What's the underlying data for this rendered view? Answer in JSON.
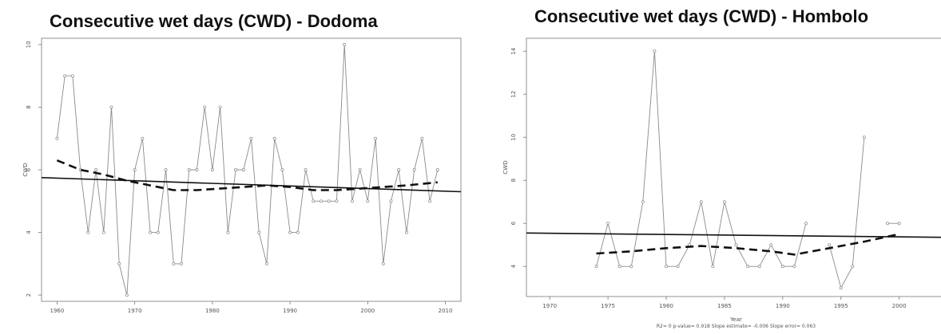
{
  "chart_data": [
    {
      "type": "line",
      "title": "Consecutive wet days (CWD) - Dodoma",
      "xlabel": "",
      "ylabel": "CWD",
      "xlim": [
        1958,
        2012
      ],
      "ylim": [
        1.8,
        10.2
      ],
      "xticks": [
        "1960",
        "1970",
        "1980",
        "1990",
        "2000",
        "2010"
      ],
      "yticks": [
        "2",
        "4",
        "6",
        "8",
        "10"
      ],
      "x": [
        1960,
        1961,
        1962,
        1963,
        1964,
        1965,
        1966,
        1967,
        1968,
        1969,
        1970,
        1971,
        1972,
        1973,
        1974,
        1975,
        1976,
        1977,
        1978,
        1979,
        1980,
        1981,
        1982,
        1983,
        1984,
        1985,
        1986,
        1987,
        1988,
        1989,
        1990,
        1991,
        1992,
        1993,
        1994,
        1995,
        1996,
        1997,
        1998,
        1999,
        2000,
        2001,
        2002,
        2003,
        2004,
        2005,
        2006,
        2007,
        2008,
        2009
      ],
      "y": [
        7,
        9,
        9,
        6,
        4,
        6,
        4,
        8,
        3,
        2,
        6,
        7,
        4,
        4,
        6,
        3,
        3,
        6,
        6,
        8,
        6,
        8,
        4,
        6,
        6,
        7,
        4,
        3,
        7,
        6,
        4,
        4,
        6,
        5,
        5,
        5,
        5,
        10,
        5,
        6,
        5,
        7,
        3,
        5,
        6,
        4,
        6,
        7,
        5,
        6
      ],
      "trend": {
        "x": [
          1958,
          2012
        ],
        "y": [
          5.75,
          5.3
        ]
      },
      "smooth": {
        "x": [
          1960,
          1963,
          1966,
          1969,
          1972,
          1975,
          1978,
          1981,
          1984,
          1987,
          1990,
          1993,
          1996,
          1999,
          2002,
          2005,
          2009
        ],
        "y": [
          6.3,
          6.0,
          5.85,
          5.65,
          5.5,
          5.35,
          5.35,
          5.4,
          5.45,
          5.5,
          5.45,
          5.35,
          5.35,
          5.4,
          5.45,
          5.5,
          5.6
        ]
      },
      "footnote": ""
    },
    {
      "type": "line",
      "title": "Consecutive wet days (CWD) - Hombolo",
      "xlabel": "Year",
      "ylabel": "CWD",
      "xlim": [
        1968,
        2004
      ],
      "ylim": [
        2.6,
        14.6
      ],
      "xticks": [
        "1970",
        "1975",
        "1980",
        "1985",
        "1990",
        "1995",
        "2000"
      ],
      "yticks": [
        "4",
        "6",
        "8",
        "10",
        "12",
        "14"
      ],
      "segments": [
        {
          "x": [
            1974,
            1975,
            1976,
            1977,
            1978,
            1979,
            1980,
            1981,
            1982,
            1983,
            1984,
            1985,
            1986,
            1987,
            1988,
            1989,
            1990,
            1991,
            1992
          ],
          "y": [
            4,
            6,
            4,
            4,
            7,
            14,
            4,
            4,
            5,
            7,
            4,
            7,
            5,
            4,
            4,
            5,
            4,
            4,
            6
          ]
        },
        {
          "x": [
            1994,
            1995,
            1996,
            1997
          ],
          "y": [
            5,
            3,
            4,
            10
          ]
        },
        {
          "x": [
            1999,
            2000
          ],
          "y": [
            6,
            6
          ]
        }
      ],
      "trend": {
        "x": [
          1968,
          2004
        ],
        "y": [
          5.55,
          5.35
        ]
      },
      "smooth": {
        "x": [
          1974,
          1977,
          1980,
          1983,
          1986,
          1989,
          1991,
          1994,
          1997,
          2000
        ],
        "y": [
          4.6,
          4.7,
          4.85,
          4.95,
          4.85,
          4.7,
          4.55,
          4.85,
          5.15,
          5.5
        ]
      },
      "footnote": "R2= 0  p-value= 0.918  Slope estimate= -0.006  Slope error= 0.063"
    }
  ]
}
